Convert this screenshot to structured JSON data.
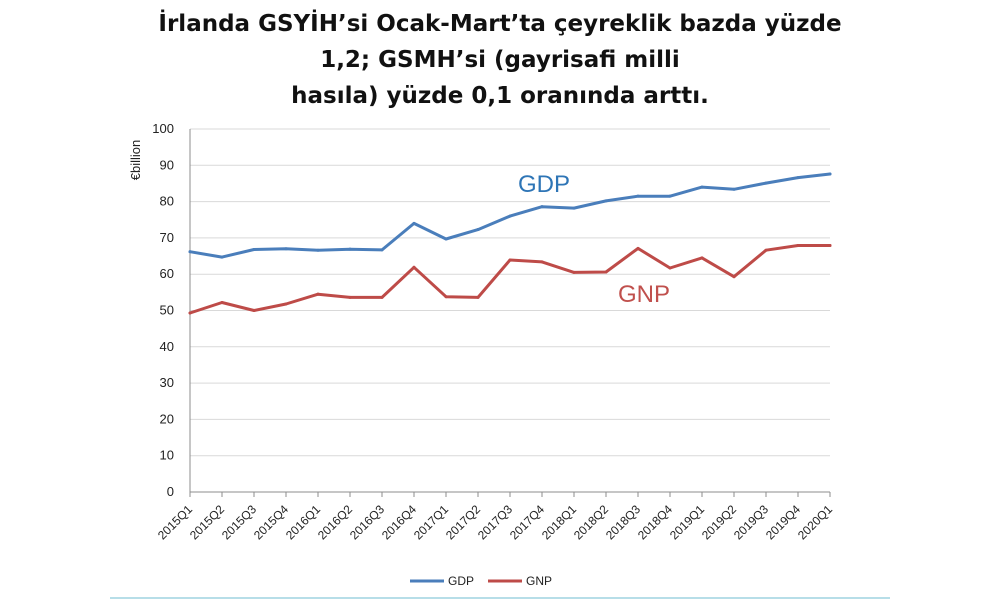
{
  "headline": {
    "line1": "İrlanda GSYİH’si Ocak-Mart’ta çeyreklik bazda yüzde",
    "line2": "1,2; GSMH’si (gayrisafi milli",
    "line3": "hasıla) yüzde 0,1 oranında arttı."
  },
  "chart_data": {
    "type": "line",
    "ylabel": "€billion",
    "ylim": [
      0,
      100
    ],
    "yticks": [
      0,
      10,
      20,
      30,
      40,
      50,
      60,
      70,
      80,
      90,
      100
    ],
    "grid": true,
    "legend_position": "bottom",
    "categories": [
      "2015Q1",
      "2015Q2",
      "2015Q3",
      "2015Q4",
      "2016Q1",
      "2016Q2",
      "2016Q3",
      "2016Q4",
      "2017Q1",
      "2017Q2",
      "2017Q3",
      "2017Q4",
      "2018Q1",
      "2018Q2",
      "2018Q3",
      "2018Q4",
      "2019Q1",
      "2019Q2",
      "2019Q3",
      "2019Q4",
      "2020Q1"
    ],
    "series": [
      {
        "name": "GDP",
        "color": "#4a7ebb",
        "label_color": "#2e75b6",
        "values": [
          66.2,
          64.7,
          66.8,
          67.0,
          66.6,
          66.9,
          66.7,
          74.0,
          69.7,
          72.3,
          76.0,
          78.6,
          78.2,
          80.2,
          81.5,
          81.5,
          84.0,
          83.4,
          85.1,
          86.6,
          87.6
        ]
      },
      {
        "name": "GNP",
        "color": "#be4b48",
        "label_color": "#c0504d",
        "values": [
          49.3,
          52.2,
          50.0,
          51.8,
          54.5,
          53.6,
          53.6,
          61.9,
          53.8,
          53.6,
          63.9,
          63.4,
          60.5,
          60.6,
          67.1,
          61.7,
          64.5,
          59.3,
          66.6,
          67.9,
          67.9
        ]
      }
    ]
  }
}
